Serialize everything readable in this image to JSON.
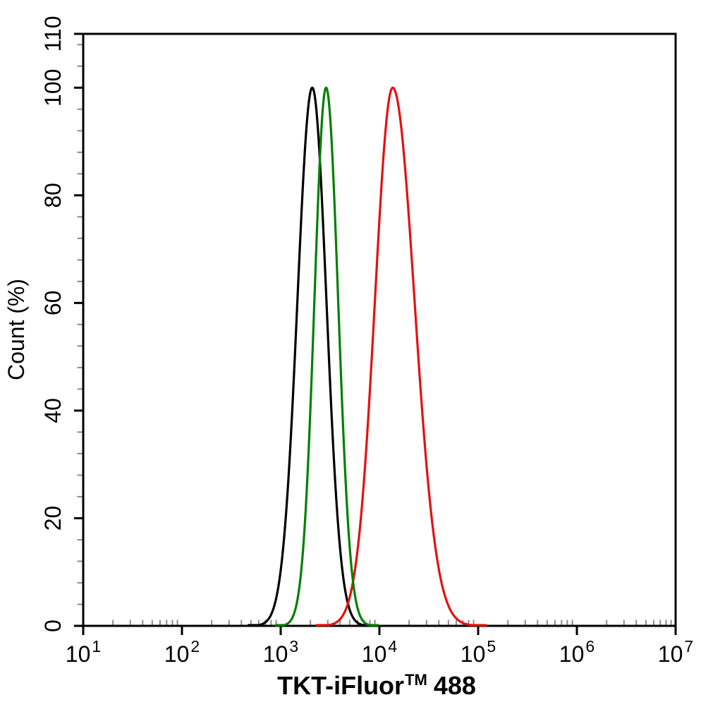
{
  "figure": {
    "background": "#ffffff",
    "frame_color": "#000000",
    "minor_tick_color": "#8c8c8c"
  },
  "chart_data": {
    "type": "line",
    "subtype": "flow-cytometry-overlay-histogram",
    "title": "",
    "xlabel": "TKT-iFluor™ 488",
    "ylabel": "Count (%)",
    "legend": "none",
    "grid": "off",
    "x_axis": {
      "label": "TKT-iFluor™ 488",
      "label_parts": {
        "main": "TKT-iFluor",
        "superscript": "TM",
        "suffix": "488"
      },
      "scale": "log10",
      "range": [
        10,
        10000000
      ],
      "major_tick_exponents": [
        1,
        2,
        3,
        4,
        5,
        6,
        7
      ],
      "tick_label_base": "10",
      "minor_ticks": "log sub-decade marks at 2-9 within each decade, drawn inside the axis"
    },
    "y_axis": {
      "label": "Count (%)",
      "range": [
        0,
        110
      ],
      "major_ticks": [
        0,
        20,
        40,
        60,
        80,
        100,
        110
      ],
      "minor_tick_step": 4
    },
    "series": [
      {
        "id": "black-curve",
        "color": "#000000",
        "peak_fluorescence": 2100,
        "peak_log10_x": 3.32,
        "peak_count_pct": 100,
        "sigma_log10_left": 0.15,
        "sigma_log10_right": 0.143,
        "approx_baseline_span_x": [
          490,
          7000
        ]
      },
      {
        "id": "red-curve",
        "color": "#e60f0f",
        "peak_fluorescence": 13600,
        "peak_log10_x": 4.135,
        "peak_count_pct": 100,
        "sigma_log10_left": 0.18,
        "sigma_log10_right": 0.22,
        "approx_baseline_span_x": [
          2200,
          96000
        ]
      },
      {
        "id": "green-curve",
        "color": "#008000",
        "peak_fluorescence": 2900,
        "peak_log10_x": 3.46,
        "peak_count_pct": 100,
        "sigma_log10_left": 0.118,
        "sigma_log10_right": 0.122,
        "approx_baseline_span_x": [
          950,
          9100
        ]
      }
    ]
  }
}
